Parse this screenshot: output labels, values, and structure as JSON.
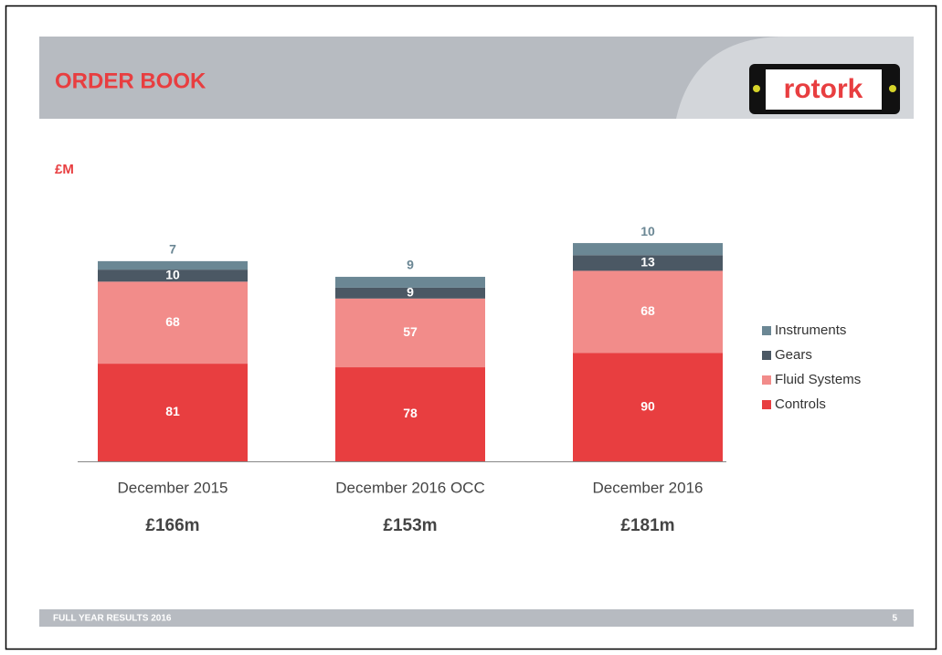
{
  "header": {
    "title": "ORDER BOOK",
    "logo": "rotork"
  },
  "footer": {
    "text": "FULL YEAR RESULTS 2016",
    "page": "5"
  },
  "chart_data": {
    "type": "stacked-bar",
    "unit_label": "£M",
    "categories": [
      "December 2015",
      "December 2016 OCC",
      "December 2016"
    ],
    "category_totals": [
      "£166m",
      "£153m",
      "£181m"
    ],
    "series": [
      {
        "name": "Controls",
        "color": "#e83e40",
        "values": [
          81,
          78,
          90
        ]
      },
      {
        "name": "Fluid Systems",
        "color": "#f28c8a",
        "values": [
          68,
          57,
          68
        ]
      },
      {
        "name": "Gears",
        "color": "#4b5864",
        "values": [
          10,
          9,
          13
        ]
      },
      {
        "name": "Instruments",
        "color": "#6b8794",
        "values": [
          7,
          9,
          10
        ]
      }
    ]
  }
}
